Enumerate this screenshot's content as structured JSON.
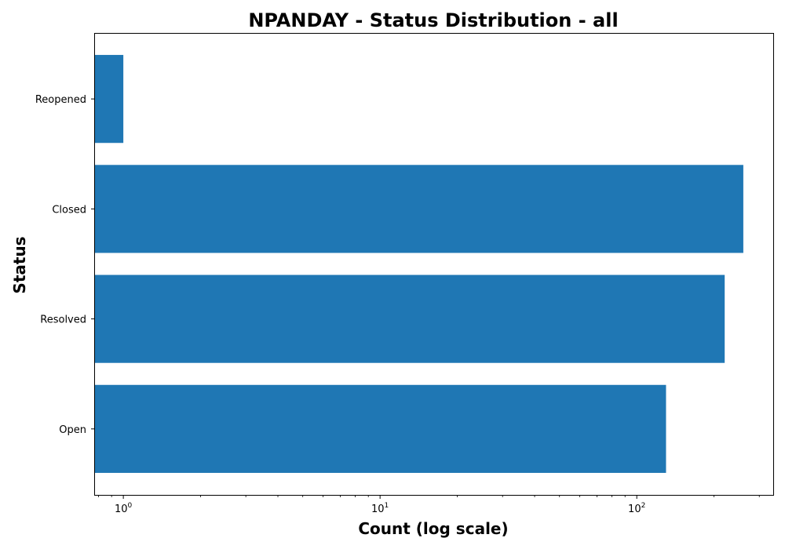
{
  "chart_data": {
    "type": "bar",
    "orientation": "horizontal",
    "title": "NPANDAY - Status Distribution - all",
    "xlabel": "Count (log scale)",
    "ylabel": "Status",
    "x_scale": "log",
    "xlim": [
      0.77,
      340
    ],
    "categories": [
      "Open",
      "Resolved",
      "Closed",
      "Reopened"
    ],
    "values": [
      130,
      220,
      260,
      1
    ],
    "x_ticks": [
      {
        "value": 1,
        "base": "10",
        "exp": "0"
      },
      {
        "value": 10,
        "base": "10",
        "exp": "1"
      },
      {
        "value": 100,
        "base": "10",
        "exp": "2"
      }
    ],
    "bar_color": "#1f77b4",
    "grid": false,
    "legend": "none"
  }
}
